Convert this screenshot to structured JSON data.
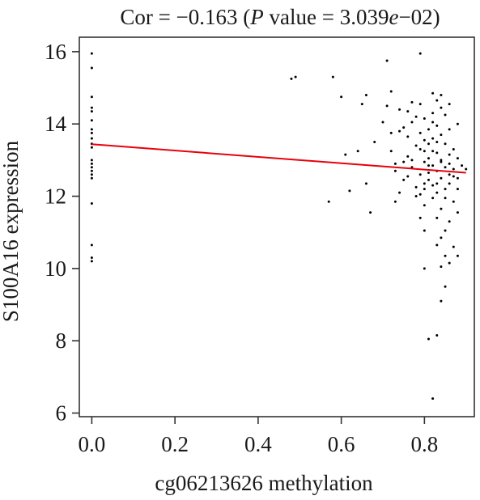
{
  "chart_data": {
    "type": "scatter",
    "title": {
      "prefix": "Cor = −0.163 (",
      "p_symbol": "P",
      "middle": " value = 3.039",
      "e_symbol": "e",
      "suffix": "−02)"
    },
    "xlabel": "cg06213626 methylation",
    "ylabel": "S100A16 expression",
    "xlim": [
      -0.03,
      0.92
    ],
    "ylim": [
      5.9,
      16.4
    ],
    "xticks": [
      0.0,
      0.2,
      0.4,
      0.6,
      0.8
    ],
    "xtick_labels": [
      "0.0",
      "0.2",
      "0.4",
      "0.6",
      "0.8"
    ],
    "yticks": [
      6,
      8,
      10,
      12,
      14,
      16
    ],
    "ytick_labels": [
      "6",
      "8",
      "10",
      "12",
      "14",
      "16"
    ],
    "grid": false,
    "point_color": "#000000",
    "line_color": "#e8000b",
    "regression_line": {
      "x": [
        0.0,
        0.9
      ],
      "y": [
        13.44,
        12.65
      ]
    },
    "points": [
      [
        0.0,
        15.95
      ],
      [
        0.0,
        15.55
      ],
      [
        0.0,
        14.75
      ],
      [
        0.0,
        14.45
      ],
      [
        0.0,
        14.35
      ],
      [
        0.0,
        14.1
      ],
      [
        0.0,
        13.85
      ],
      [
        0.0,
        13.75
      ],
      [
        0.0,
        13.6
      ],
      [
        0.0,
        13.45
      ],
      [
        0.0,
        13.35
      ],
      [
        0.0,
        13.0
      ],
      [
        0.0,
        12.9
      ],
      [
        0.0,
        12.8
      ],
      [
        0.0,
        12.7
      ],
      [
        0.0,
        12.6
      ],
      [
        0.0,
        12.5
      ],
      [
        0.0,
        11.8
      ],
      [
        0.0,
        10.65
      ],
      [
        0.0,
        10.3
      ],
      [
        0.0,
        10.2
      ],
      [
        0.48,
        15.25
      ],
      [
        0.49,
        15.3
      ],
      [
        0.57,
        11.85
      ],
      [
        0.58,
        15.3
      ],
      [
        0.6,
        14.75
      ],
      [
        0.61,
        13.15
      ],
      [
        0.62,
        12.15
      ],
      [
        0.64,
        13.25
      ],
      [
        0.65,
        14.55
      ],
      [
        0.66,
        14.8
      ],
      [
        0.66,
        12.35
      ],
      [
        0.67,
        11.55
      ],
      [
        0.68,
        13.5
      ],
      [
        0.7,
        14.05
      ],
      [
        0.71,
        15.75
      ],
      [
        0.71,
        14.5
      ],
      [
        0.72,
        14.9
      ],
      [
        0.72,
        13.25
      ],
      [
        0.73,
        12.7
      ],
      [
        0.73,
        11.85
      ],
      [
        0.74,
        14.4
      ],
      [
        0.74,
        13.8
      ],
      [
        0.75,
        12.95
      ],
      [
        0.75,
        12.45
      ],
      [
        0.76,
        14.35
      ],
      [
        0.76,
        13.65
      ],
      [
        0.76,
        12.55
      ],
      [
        0.77,
        14.6
      ],
      [
        0.77,
        13.0
      ],
      [
        0.78,
        14.2
      ],
      [
        0.78,
        13.4
      ],
      [
        0.78,
        12.25
      ],
      [
        0.79,
        14.55
      ],
      [
        0.79,
        13.3
      ],
      [
        0.79,
        12.6
      ],
      [
        0.79,
        12.05
      ],
      [
        0.79,
        15.95
      ],
      [
        0.8,
        14.15
      ],
      [
        0.8,
        13.55
      ],
      [
        0.8,
        12.95
      ],
      [
        0.8,
        12.35
      ],
      [
        0.8,
        11.75
      ],
      [
        0.8,
        10.0
      ],
      [
        0.81,
        13.85
      ],
      [
        0.81,
        13.05
      ],
      [
        0.81,
        12.45
      ],
      [
        0.81,
        8.05
      ],
      [
        0.82,
        14.85
      ],
      [
        0.82,
        14.3
      ],
      [
        0.82,
        13.6
      ],
      [
        0.82,
        12.85
      ],
      [
        0.82,
        12.3
      ],
      [
        0.82,
        11.95
      ],
      [
        0.82,
        6.4
      ],
      [
        0.83,
        14.65
      ],
      [
        0.83,
        13.95
      ],
      [
        0.83,
        13.2
      ],
      [
        0.83,
        12.7
      ],
      [
        0.83,
        12.1
      ],
      [
        0.83,
        10.65
      ],
      [
        0.83,
        8.15
      ],
      [
        0.84,
        14.45
      ],
      [
        0.84,
        13.7
      ],
      [
        0.84,
        13.0
      ],
      [
        0.84,
        12.5
      ],
      [
        0.84,
        11.65
      ],
      [
        0.84,
        10.85
      ],
      [
        0.84,
        9.1
      ],
      [
        0.85,
        14.25
      ],
      [
        0.85,
        13.45
      ],
      [
        0.85,
        12.8
      ],
      [
        0.85,
        12.2
      ],
      [
        0.85,
        10.35
      ],
      [
        0.85,
        9.5
      ],
      [
        0.86,
        14.55
      ],
      [
        0.86,
        13.85
      ],
      [
        0.86,
        13.15
      ],
      [
        0.86,
        12.6
      ],
      [
        0.86,
        11.3
      ],
      [
        0.86,
        10.15
      ],
      [
        0.87,
        13.3
      ],
      [
        0.87,
        12.75
      ],
      [
        0.87,
        11.85
      ],
      [
        0.87,
        10.6
      ],
      [
        0.88,
        14.0
      ],
      [
        0.88,
        13.05
      ],
      [
        0.88,
        12.5
      ],
      [
        0.88,
        11.55
      ],
      [
        0.88,
        10.35
      ],
      [
        0.89,
        12.85
      ],
      [
        0.9,
        12.75
      ],
      [
        0.72,
        13.75
      ],
      [
        0.73,
        12.9
      ],
      [
        0.74,
        12.1
      ],
      [
        0.76,
        13.1
      ],
      [
        0.77,
        12.8
      ],
      [
        0.78,
        12.0
      ],
      [
        0.79,
        13.75
      ],
      [
        0.8,
        12.2
      ],
      [
        0.81,
        13.45
      ],
      [
        0.81,
        12.65
      ],
      [
        0.82,
        13.25
      ],
      [
        0.83,
        12.35
      ],
      [
        0.84,
        12.95
      ],
      [
        0.85,
        11.95
      ],
      [
        0.86,
        12.35
      ],
      [
        0.87,
        12.55
      ],
      [
        0.88,
        12.2
      ],
      [
        0.8,
        11.05
      ],
      [
        0.83,
        11.4
      ],
      [
        0.85,
        11.05
      ],
      [
        0.84,
        10.05
      ],
      [
        0.86,
        12.9
      ],
      [
        0.82,
        14.05
      ],
      [
        0.77,
        14.05
      ],
      [
        0.75,
        13.9
      ],
      [
        0.79,
        11.4
      ],
      [
        0.81,
        12.85
      ],
      [
        0.83,
        13.5
      ],
      [
        0.84,
        14.8
      ],
      [
        0.8,
        13.25
      ]
    ]
  }
}
